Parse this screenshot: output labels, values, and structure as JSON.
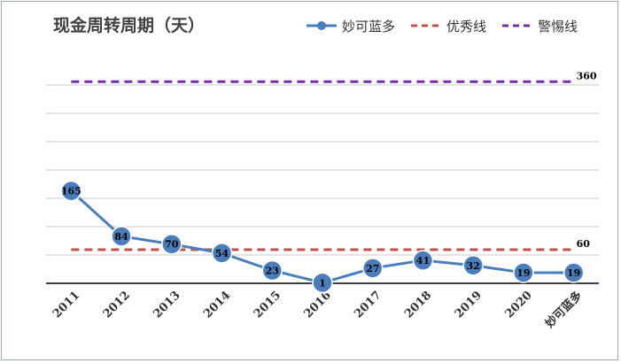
{
  "chart_data": {
    "type": "line",
    "title": "现金周转周期（天）",
    "categories": [
      "2011",
      "2012",
      "2013",
      "2014",
      "2015",
      "2016",
      "2017",
      "2018",
      "2019",
      "2020",
      "妙可蓝多"
    ],
    "series": [
      {
        "name": "妙可蓝多",
        "values": [
          165,
          84,
          70,
          54,
          23,
          1,
          27,
          41,
          32,
          19,
          19
        ],
        "color": "#4a7ebb"
      },
      {
        "name": "优秀线",
        "values": [
          60,
          60,
          60,
          60,
          60,
          60,
          60,
          60,
          60,
          60,
          60
        ],
        "color": "#c0504d",
        "dash": true,
        "end_label": "60"
      },
      {
        "name": "警惕线",
        "values": [
          360,
          360,
          360,
          360,
          360,
          360,
          360,
          360,
          360,
          360,
          360
        ],
        "color": "#7030a0",
        "dash": true,
        "end_label": "360"
      }
    ],
    "ylim": [
      0,
      400
    ],
    "grid": true,
    "legend_position": "top-right"
  }
}
